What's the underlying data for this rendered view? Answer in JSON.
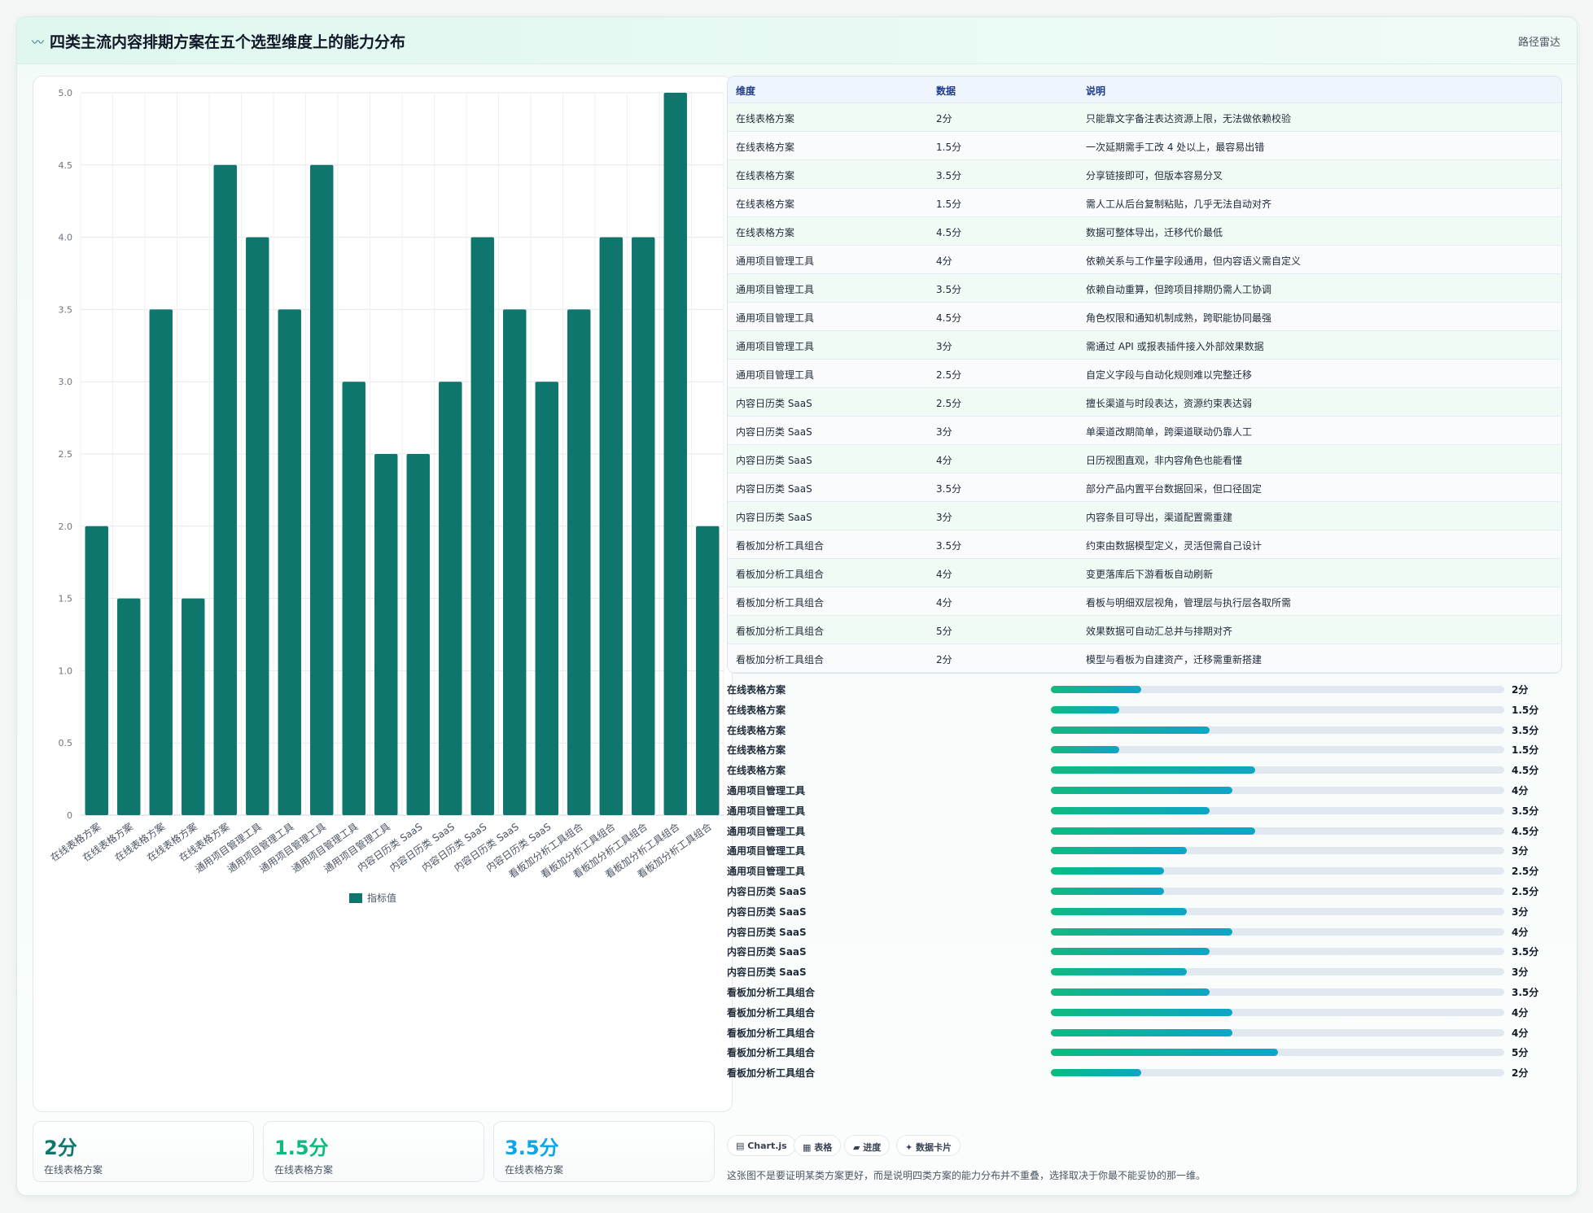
{
  "header": {
    "icon": "wave-icon",
    "title": "四类主流内容排期方案在五个选型维度上的能力分布",
    "tag": "路径雷达"
  },
  "chart_data": {
    "type": "bar",
    "categories": [
      "在线表格方案",
      "在线表格方案",
      "在线表格方案",
      "在线表格方案",
      "在线表格方案",
      "通用项目管理工具",
      "通用项目管理工具",
      "通用项目管理工具",
      "通用项目管理工具",
      "通用项目管理工具",
      "内容日历类 SaaS",
      "内容日历类 SaaS",
      "内容日历类 SaaS",
      "内容日历类 SaaS",
      "内容日历类 SaaS",
      "看板加分析工具组合",
      "看板加分析工具组合",
      "看板加分析工具组合",
      "看板加分析工具组合",
      "看板加分析工具组合"
    ],
    "series": [
      {
        "name": "指标值",
        "values": [
          2,
          1.5,
          3.5,
          1.5,
          4.5,
          4,
          3.5,
          4.5,
          3,
          2.5,
          2.5,
          3,
          4,
          3.5,
          3,
          3.5,
          4,
          4,
          5,
          2
        ]
      }
    ],
    "ylim": [
      0,
      5
    ],
    "yticks": [
      "0",
      "0.5",
      "1.0",
      "1.5",
      "2.0",
      "2.5",
      "3.0",
      "3.5",
      "4.0",
      "4.5",
      "5.0"
    ],
    "grid": true,
    "legend": "bottom",
    "bar_color": "#0f766e"
  },
  "stats": [
    {
      "value": "2分",
      "label": "在线表格方案",
      "color": "#0f766e"
    },
    {
      "value": "1.5分",
      "label": "在线表格方案",
      "color": "#10b981"
    },
    {
      "value": "3.5分",
      "label": "在线表格方案",
      "color": "#0ea5e9"
    }
  ],
  "table": {
    "headers": [
      "维度",
      "数据",
      "说明"
    ],
    "rows": [
      [
        "在线表格方案",
        "2分",
        "只能靠文字备注表达资源上限，无法做依赖校验"
      ],
      [
        "在线表格方案",
        "1.5分",
        "一次延期需手工改 4 处以上，最容易出错"
      ],
      [
        "在线表格方案",
        "3.5分",
        "分享链接即可，但版本容易分叉"
      ],
      [
        "在线表格方案",
        "1.5分",
        "需人工从后台复制粘贴，几乎无法自动对齐"
      ],
      [
        "在线表格方案",
        "4.5分",
        "数据可整体导出，迁移代价最低"
      ],
      [
        "通用项目管理工具",
        "4分",
        "依赖关系与工作量字段通用，但内容语义需自定义"
      ],
      [
        "通用项目管理工具",
        "3.5分",
        "依赖自动重算，但跨项目排期仍需人工协调"
      ],
      [
        "通用项目管理工具",
        "4.5分",
        "角色权限和通知机制成熟，跨职能协同最强"
      ],
      [
        "通用项目管理工具",
        "3分",
        "需通过 API 或报表插件接入外部效果数据"
      ],
      [
        "通用项目管理工具",
        "2.5分",
        "自定义字段与自动化规则难以完整迁移"
      ],
      [
        "内容日历类 SaaS",
        "2.5分",
        "擅长渠道与时段表达，资源约束表达弱"
      ],
      [
        "内容日历类 SaaS",
        "3分",
        "单渠道改期简单，跨渠道联动仍靠人工"
      ],
      [
        "内容日历类 SaaS",
        "4分",
        "日历视图直观，非内容角色也能看懂"
      ],
      [
        "内容日历类 SaaS",
        "3.5分",
        "部分产品内置平台数据回采，但口径固定"
      ],
      [
        "内容日历类 SaaS",
        "3分",
        "内容条目可导出，渠道配置需重建"
      ],
      [
        "看板加分析工具组合",
        "3.5分",
        "约束由数据模型定义，灵活但需自己设计"
      ],
      [
        "看板加分析工具组合",
        "4分",
        "变更落库后下游看板自动刷新"
      ],
      [
        "看板加分析工具组合",
        "4分",
        "看板与明细双层视角，管理层与执行层各取所需"
      ],
      [
        "看板加分析工具组合",
        "5分",
        "效果数据可自动汇总并与排期对齐"
      ],
      [
        "看板加分析工具组合",
        "2分",
        "模型与看板为自建资产，迁移需重新搭建"
      ]
    ]
  },
  "progress": [
    {
      "label": "在线表格方案",
      "value": 2,
      "text": "2分"
    },
    {
      "label": "在线表格方案",
      "value": 1.5,
      "text": "1.5分"
    },
    {
      "label": "在线表格方案",
      "value": 3.5,
      "text": "3.5分"
    },
    {
      "label": "在线表格方案",
      "value": 1.5,
      "text": "1.5分"
    },
    {
      "label": "在线表格方案",
      "value": 4.5,
      "text": "4.5分"
    },
    {
      "label": "通用项目管理工具",
      "value": 4,
      "text": "4分"
    },
    {
      "label": "通用项目管理工具",
      "value": 3.5,
      "text": "3.5分"
    },
    {
      "label": "通用项目管理工具",
      "value": 4.5,
      "text": "4.5分"
    },
    {
      "label": "通用项目管理工具",
      "value": 3,
      "text": "3分"
    },
    {
      "label": "通用项目管理工具",
      "value": 2.5,
      "text": "2.5分"
    },
    {
      "label": "内容日历类 SaaS",
      "value": 2.5,
      "text": "2.5分"
    },
    {
      "label": "内容日历类 SaaS",
      "value": 3,
      "text": "3分"
    },
    {
      "label": "内容日历类 SaaS",
      "value": 4,
      "text": "4分"
    },
    {
      "label": "内容日历类 SaaS",
      "value": 3.5,
      "text": "3.5分"
    },
    {
      "label": "内容日历类 SaaS",
      "value": 3,
      "text": "3分"
    },
    {
      "label": "看板加分析工具组合",
      "value": 3.5,
      "text": "3.5分"
    },
    {
      "label": "看板加分析工具组合",
      "value": 4,
      "text": "4分"
    },
    {
      "label": "看板加分析工具组合",
      "value": 4,
      "text": "4分"
    },
    {
      "label": "看板加分析工具组合",
      "value": 5,
      "text": "5分"
    },
    {
      "label": "看板加分析工具组合",
      "value": 2,
      "text": "2分"
    }
  ],
  "progress_max": 10,
  "chips": [
    "▤ Chart.js",
    "▦ 表格",
    "▰ 进度",
    "✦ 数据卡片"
  ],
  "footnote": "这张图不是要证明某类方案更好，而是说明四类方案的能力分布并不重叠，选择取决于你最不能妥协的那一维。"
}
